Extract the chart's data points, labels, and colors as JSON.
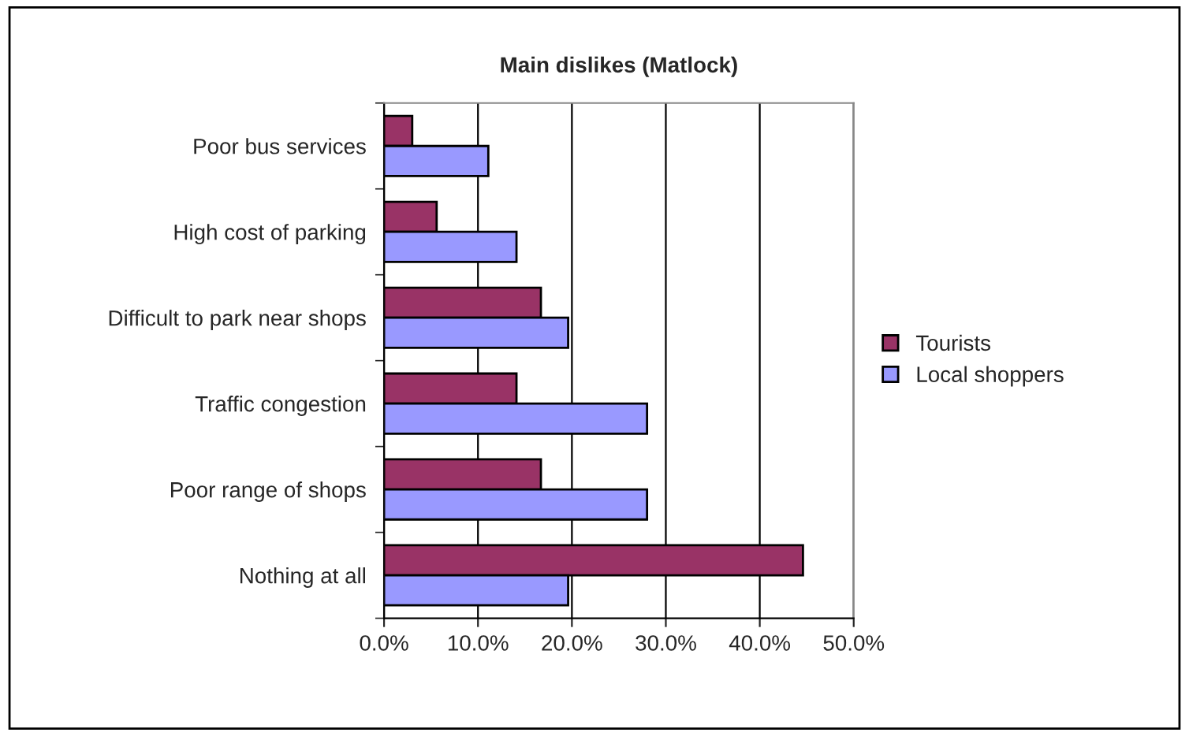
{
  "chart_data": {
    "type": "bar",
    "orientation": "horizontal",
    "title": "Main dislikes (Matlock)",
    "categories": [
      "Poor bus services",
      "High cost of parking",
      "Difficult to park near shops",
      "Traffic congestion",
      "Poor range of shops",
      "Nothing at all"
    ],
    "series": [
      {
        "name": "Tourists",
        "color": "#993366",
        "values": [
          3.0,
          5.6,
          16.7,
          14.1,
          16.7,
          44.6
        ]
      },
      {
        "name": "Local shoppers",
        "color": "#9999ff",
        "values": [
          11.1,
          14.1,
          19.6,
          28.0,
          28.0,
          19.6
        ]
      }
    ],
    "xlim": [
      0,
      50
    ],
    "xticks": [
      {
        "value": 0,
        "label": "0.0%"
      },
      {
        "value": 10,
        "label": "10.0%"
      },
      {
        "value": 20,
        "label": "20.0%"
      },
      {
        "value": 30,
        "label": "30.0%"
      },
      {
        "value": 40,
        "label": "40.0%"
      },
      {
        "value": 50,
        "label": "50.0%"
      }
    ],
    "grid": "x",
    "legend": "right"
  }
}
